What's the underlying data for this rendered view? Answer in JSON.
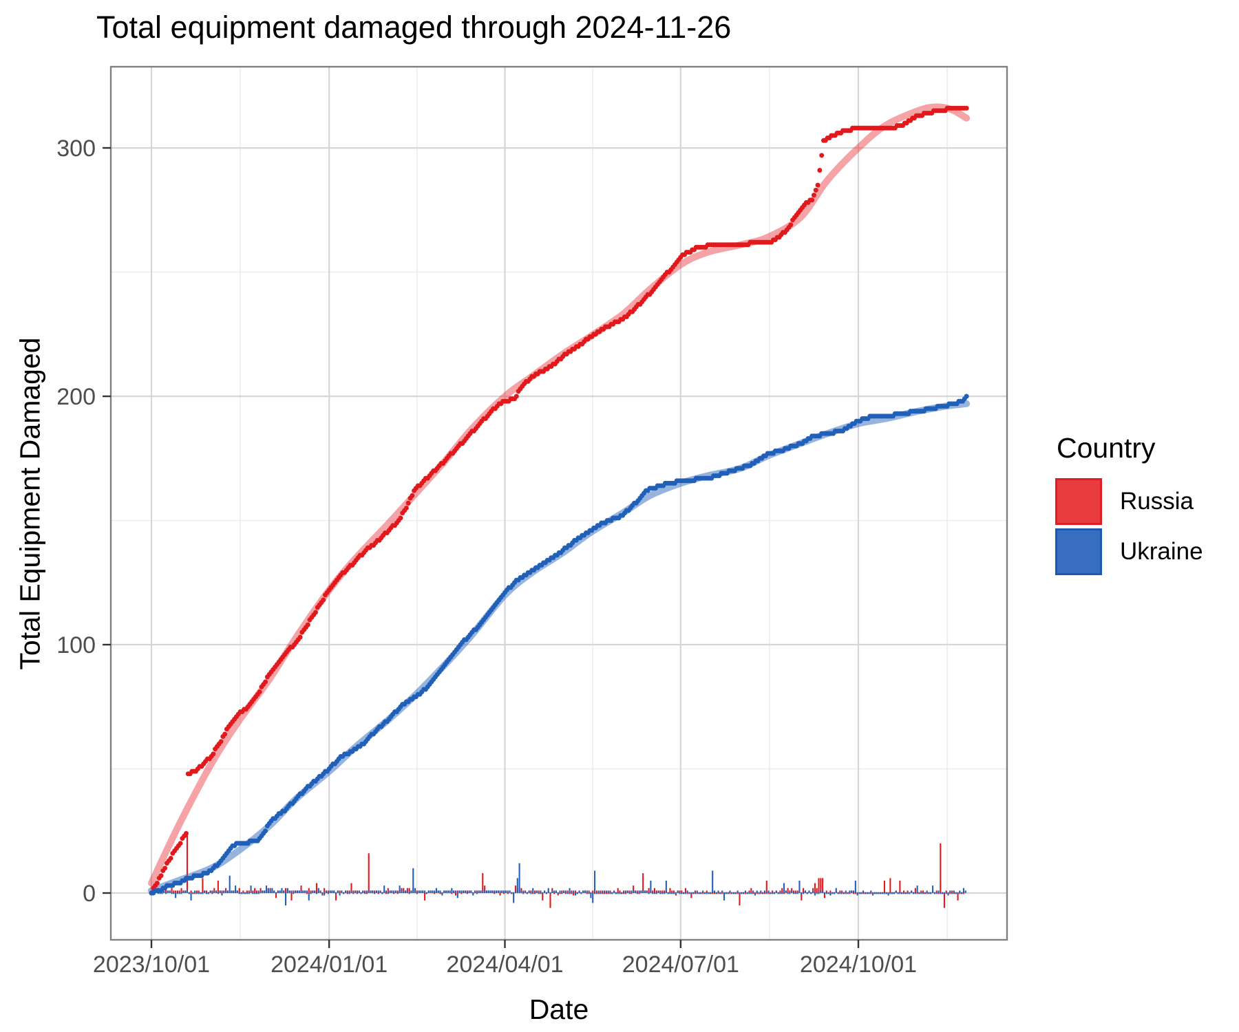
{
  "title": "Total equipment damaged through 2024-11-26",
  "axes": {
    "x": {
      "label": "Date",
      "tick_labels": [
        "2023/10/01",
        "2024/01/01",
        "2024/04/01",
        "2024/07/01",
        "2024/10/01"
      ],
      "tick_dates": [
        "2023-10-01",
        "2024-01-01",
        "2024-04-01",
        "2024-07-01",
        "2024-10-01"
      ]
    },
    "y": {
      "label": "Total Equipment Damaged",
      "tick_labels": [
        "0",
        "100",
        "200",
        "300"
      ],
      "tick_values": [
        0,
        100,
        200,
        300
      ]
    }
  },
  "legend": {
    "title": "Country",
    "entries": [
      {
        "label": "Russia",
        "fill": "rgba(228,26,28,0.85)",
        "stroke": "#df1d24"
      },
      {
        "label": "Ukraine",
        "fill": "rgba(38,98,186,0.92)",
        "stroke": "#1d59b0"
      }
    ]
  },
  "colors": {
    "russia": "#e2191c",
    "russia_smooth": "rgba(230,35,42,0.42)",
    "ukraine": "#2160b8",
    "ukraine_smooth": "rgba(45,105,190,0.5)",
    "grid_major": "#d6d6d6",
    "grid_minor": "#ececec",
    "panel_border": "#7f7f7f",
    "tick_mark": "#333333",
    "tick_label": "#4d4d4d"
  },
  "chart_data": {
    "type": "scatter+smooth+bar",
    "x_start": "2023-10-01",
    "x_end": "2024-11-26",
    "x_days": 422,
    "ylim": [
      -24,
      332
    ],
    "grid": true,
    "legend_position": "right",
    "description": "Cumulative equipment damaged (dots = daily cumulative totals, thick translucent line = smoothed trend, small bars at baseline = daily increments, some negative corrections)",
    "series": [
      {
        "name": "Russia",
        "role": "cumulative_points",
        "points": [
          [
            "2023-10-01",
            0
          ],
          [
            "2023-10-03",
            3
          ],
          [
            "2023-10-06",
            7
          ],
          [
            "2023-10-10",
            13
          ],
          [
            "2023-10-14",
            18
          ],
          [
            "2023-10-19",
            24
          ],
          [
            "2023-10-20",
            48
          ],
          [
            "2023-10-24",
            49
          ],
          [
            "2023-10-28",
            52
          ],
          [
            "2023-11-01",
            55
          ],
          [
            "2023-11-05",
            60
          ],
          [
            "2023-11-10",
            67
          ],
          [
            "2023-11-15",
            72
          ],
          [
            "2023-11-20",
            75
          ],
          [
            "2023-11-25",
            80
          ],
          [
            "2023-12-01",
            88
          ],
          [
            "2023-12-06",
            93
          ],
          [
            "2023-12-10",
            97
          ],
          [
            "2023-12-15",
            101
          ],
          [
            "2023-12-20",
            107
          ],
          [
            "2023-12-24",
            112
          ],
          [
            "2023-12-28",
            117
          ],
          [
            "2024-01-01",
            122
          ],
          [
            "2024-01-06",
            127
          ],
          [
            "2024-01-10",
            130
          ],
          [
            "2024-01-15",
            134
          ],
          [
            "2024-01-20",
            138
          ],
          [
            "2024-01-25",
            141
          ],
          [
            "2024-02-01",
            146
          ],
          [
            "2024-02-05",
            149
          ],
          [
            "2024-02-10",
            155
          ],
          [
            "2024-02-14",
            162
          ],
          [
            "2024-02-18",
            165
          ],
          [
            "2024-02-23",
            169
          ],
          [
            "2024-03-01",
            174
          ],
          [
            "2024-03-07",
            179
          ],
          [
            "2024-03-12",
            183
          ],
          [
            "2024-03-18",
            188
          ],
          [
            "2024-03-24",
            193
          ],
          [
            "2024-03-28",
            196
          ],
          [
            "2024-04-01",
            198
          ],
          [
            "2024-04-06",
            199
          ],
          [
            "2024-04-10",
            204
          ],
          [
            "2024-04-15",
            208
          ],
          [
            "2024-04-20",
            210
          ],
          [
            "2024-04-25",
            212
          ],
          [
            "2024-05-01",
            216
          ],
          [
            "2024-05-07",
            219
          ],
          [
            "2024-05-12",
            222
          ],
          [
            "2024-05-18",
            225
          ],
          [
            "2024-05-24",
            228
          ],
          [
            "2024-06-01",
            231
          ],
          [
            "2024-06-07",
            235
          ],
          [
            "2024-06-12",
            239
          ],
          [
            "2024-06-17",
            243
          ],
          [
            "2024-06-22",
            248
          ],
          [
            "2024-06-27",
            252
          ],
          [
            "2024-07-01",
            256
          ],
          [
            "2024-07-05",
            258
          ],
          [
            "2024-07-10",
            260
          ],
          [
            "2024-07-20",
            261
          ],
          [
            "2024-08-01",
            261
          ],
          [
            "2024-08-10",
            262
          ],
          [
            "2024-08-16",
            262
          ],
          [
            "2024-08-21",
            264
          ],
          [
            "2024-08-26",
            268
          ],
          [
            "2024-08-30",
            273
          ],
          [
            "2024-09-03",
            277
          ],
          [
            "2024-09-07",
            279
          ],
          [
            "2024-09-10",
            285
          ],
          [
            "2024-09-13",
            303
          ],
          [
            "2024-09-18",
            305
          ],
          [
            "2024-09-24",
            307
          ],
          [
            "2024-10-01",
            308
          ],
          [
            "2024-10-18",
            308
          ],
          [
            "2024-10-24",
            309
          ],
          [
            "2024-10-28",
            311
          ],
          [
            "2024-11-01",
            313
          ],
          [
            "2024-11-06",
            314
          ],
          [
            "2024-11-12",
            315
          ],
          [
            "2024-11-20",
            316
          ],
          [
            "2024-11-26",
            316
          ]
        ]
      },
      {
        "name": "Russia",
        "role": "smooth_trend",
        "points": [
          [
            "2023-10-01",
            4
          ],
          [
            "2023-10-15",
            27
          ],
          [
            "2023-11-01",
            52
          ],
          [
            "2023-11-15",
            69
          ],
          [
            "2023-12-01",
            86
          ],
          [
            "2023-12-15",
            103
          ],
          [
            "2024-01-01",
            122
          ],
          [
            "2024-01-15",
            135
          ],
          [
            "2024-02-01",
            149
          ],
          [
            "2024-02-15",
            161
          ],
          [
            "2024-03-01",
            174
          ],
          [
            "2024-03-15",
            187
          ],
          [
            "2024-04-01",
            200
          ],
          [
            "2024-04-15",
            208
          ],
          [
            "2024-05-01",
            217
          ],
          [
            "2024-05-15",
            224
          ],
          [
            "2024-06-01",
            233
          ],
          [
            "2024-06-15",
            243
          ],
          [
            "2024-07-01",
            253
          ],
          [
            "2024-07-15",
            258
          ],
          [
            "2024-08-01",
            261
          ],
          [
            "2024-08-15",
            264
          ],
          [
            "2024-09-01",
            272
          ],
          [
            "2024-09-15",
            287
          ],
          [
            "2024-10-01",
            300
          ],
          [
            "2024-10-15",
            309
          ],
          [
            "2024-11-01",
            315
          ],
          [
            "2024-11-10",
            316.5
          ],
          [
            "2024-11-18",
            315.5
          ],
          [
            "2024-11-26",
            312
          ]
        ]
      },
      {
        "name": "Ukraine",
        "role": "cumulative_points",
        "points": [
          [
            "2023-10-01",
            0
          ],
          [
            "2023-10-05",
            1
          ],
          [
            "2023-10-10",
            3
          ],
          [
            "2023-10-15",
            4
          ],
          [
            "2023-10-20",
            6
          ],
          [
            "2023-10-26",
            7
          ],
          [
            "2023-11-01",
            9
          ],
          [
            "2023-11-05",
            12
          ],
          [
            "2023-11-09",
            16
          ],
          [
            "2023-11-12",
            19
          ],
          [
            "2023-11-16",
            20
          ],
          [
            "2023-11-25",
            21
          ],
          [
            "2023-11-28",
            24
          ],
          [
            "2023-12-01",
            28
          ],
          [
            "2023-12-05",
            31
          ],
          [
            "2023-12-10",
            34
          ],
          [
            "2023-12-15",
            38
          ],
          [
            "2023-12-20",
            42
          ],
          [
            "2023-12-26",
            46
          ],
          [
            "2024-01-01",
            50
          ],
          [
            "2024-01-06",
            54
          ],
          [
            "2024-01-10",
            56
          ],
          [
            "2024-01-15",
            58
          ],
          [
            "2024-01-20",
            61
          ],
          [
            "2024-01-26",
            66
          ],
          [
            "2024-02-01",
            70
          ],
          [
            "2024-02-07",
            75
          ],
          [
            "2024-02-12",
            78
          ],
          [
            "2024-02-17",
            80
          ],
          [
            "2024-02-22",
            84
          ],
          [
            "2024-02-27",
            89
          ],
          [
            "2024-03-04",
            95
          ],
          [
            "2024-03-09",
            100
          ],
          [
            "2024-03-14",
            104
          ],
          [
            "2024-03-19",
            108
          ],
          [
            "2024-03-25",
            114
          ],
          [
            "2024-04-01",
            121
          ],
          [
            "2024-04-06",
            125
          ],
          [
            "2024-04-11",
            128
          ],
          [
            "2024-04-16",
            130
          ],
          [
            "2024-04-21",
            133
          ],
          [
            "2024-04-26",
            135
          ],
          [
            "2024-05-01",
            138
          ],
          [
            "2024-05-06",
            141
          ],
          [
            "2024-05-12",
            144
          ],
          [
            "2024-05-17",
            147
          ],
          [
            "2024-05-22",
            149
          ],
          [
            "2024-06-01",
            152
          ],
          [
            "2024-06-05",
            155
          ],
          [
            "2024-06-09",
            158
          ],
          [
            "2024-06-13",
            162
          ],
          [
            "2024-06-20",
            164
          ],
          [
            "2024-07-01",
            166
          ],
          [
            "2024-07-16",
            167
          ],
          [
            "2024-07-24",
            169
          ],
          [
            "2024-08-01",
            171
          ],
          [
            "2024-08-08",
            173
          ],
          [
            "2024-08-15",
            177
          ],
          [
            "2024-08-22",
            178
          ],
          [
            "2024-09-01",
            181
          ],
          [
            "2024-09-08",
            184
          ],
          [
            "2024-09-15",
            185
          ],
          [
            "2024-09-22",
            186
          ],
          [
            "2024-10-01",
            190
          ],
          [
            "2024-10-08",
            192
          ],
          [
            "2024-10-16",
            192
          ],
          [
            "2024-10-24",
            193
          ],
          [
            "2024-11-01",
            194
          ],
          [
            "2024-11-08",
            195
          ],
          [
            "2024-11-14",
            196
          ],
          [
            "2024-11-20",
            197
          ],
          [
            "2024-11-24",
            198
          ],
          [
            "2024-11-25",
            199
          ],
          [
            "2024-11-26",
            200
          ]
        ]
      },
      {
        "name": "Ukraine",
        "role": "smooth_trend",
        "points": [
          [
            "2023-10-01",
            1
          ],
          [
            "2023-10-15",
            5
          ],
          [
            "2023-11-01",
            10
          ],
          [
            "2023-11-15",
            17
          ],
          [
            "2023-12-01",
            27
          ],
          [
            "2023-12-15",
            38
          ],
          [
            "2024-01-01",
            49
          ],
          [
            "2024-01-15",
            59
          ],
          [
            "2024-02-01",
            70
          ],
          [
            "2024-02-15",
            80
          ],
          [
            "2024-03-01",
            92
          ],
          [
            "2024-03-15",
            104
          ],
          [
            "2024-04-01",
            120
          ],
          [
            "2024-04-15",
            129
          ],
          [
            "2024-05-01",
            137
          ],
          [
            "2024-05-15",
            145
          ],
          [
            "2024-06-01",
            153
          ],
          [
            "2024-06-15",
            160
          ],
          [
            "2024-07-01",
            165
          ],
          [
            "2024-07-15",
            168
          ],
          [
            "2024-08-01",
            171
          ],
          [
            "2024-08-15",
            176
          ],
          [
            "2024-09-01",
            181
          ],
          [
            "2024-09-15",
            185
          ],
          [
            "2024-10-01",
            189
          ],
          [
            "2024-10-15",
            191
          ],
          [
            "2024-11-01",
            194
          ],
          [
            "2024-11-15",
            196
          ],
          [
            "2024-11-26",
            197
          ]
        ]
      }
    ],
    "daily_bar_spikes": {
      "russia": {
        "19": 24,
        "113": 16,
        "172": 8,
        "255": 8,
        "383": 6,
        "409": 20,
        "96": -3,
        "207": -6,
        "305": -5,
        "337": -3,
        "411": -6,
        "418": -3
      },
      "ukraine": {
        "40": 7,
        "135": 10,
        "190": 12,
        "229": 9,
        "290": 9,
        "364": 5,
        "69": -5,
        "187": -4,
        "228": -4
      }
    }
  }
}
